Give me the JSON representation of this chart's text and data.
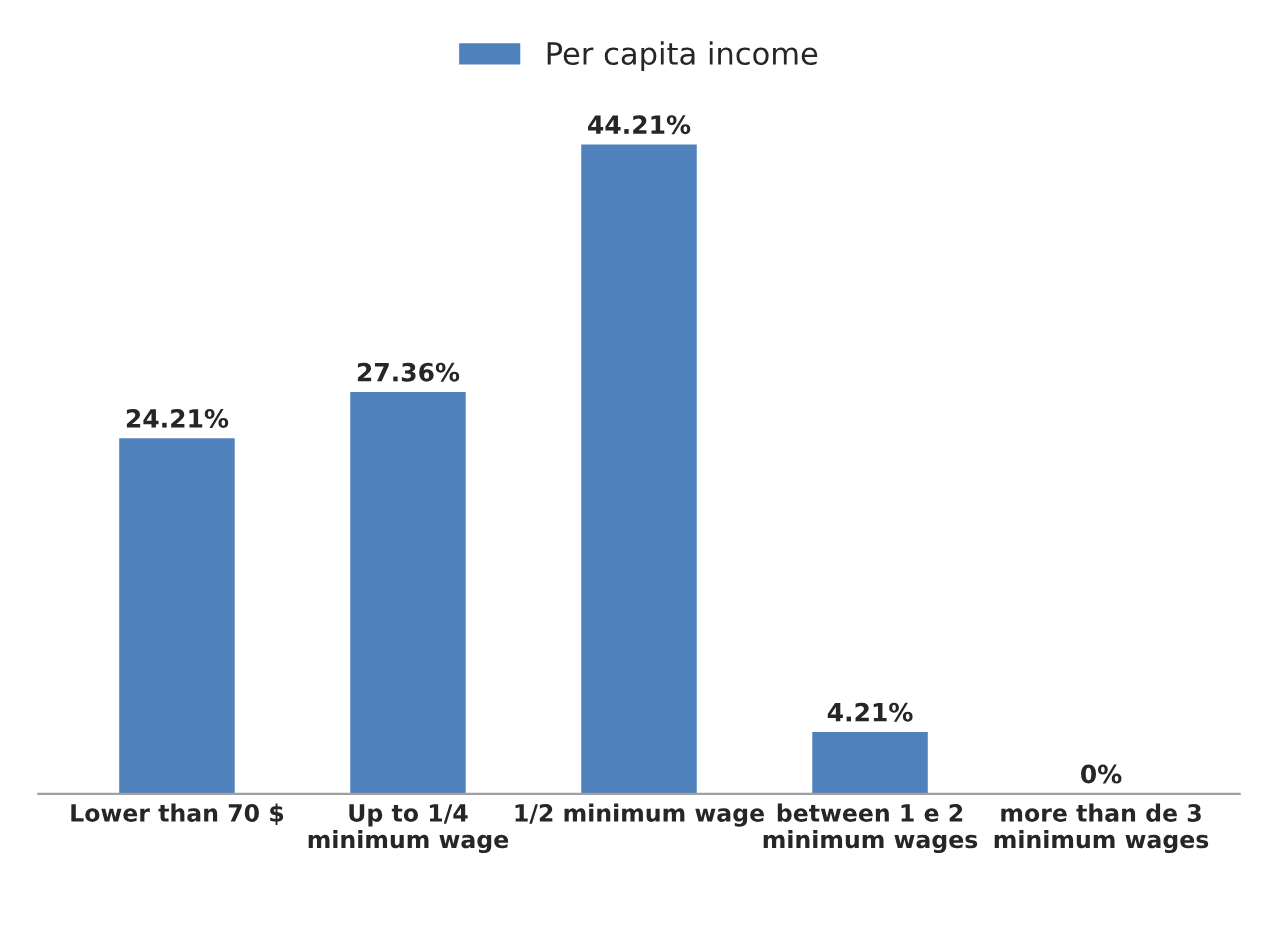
{
  "chart_data": {
    "type": "bar",
    "categories": [
      "Lower than 70 $",
      "Up to 1/4 minimum wage",
      "1/2 minimum wage",
      "between 1 e 2 minimum wages",
      "more than de 3 minimum wages"
    ],
    "series": [
      {
        "name": "Per capita income",
        "color": "#4f81bd",
        "values": [
          24.21,
          27.36,
          44.21,
          4.21,
          0
        ],
        "value_labels": [
          "24.21%",
          "27.36%",
          "44.21%",
          "4.21%",
          "0%"
        ]
      }
    ],
    "legend": "top"
  }
}
